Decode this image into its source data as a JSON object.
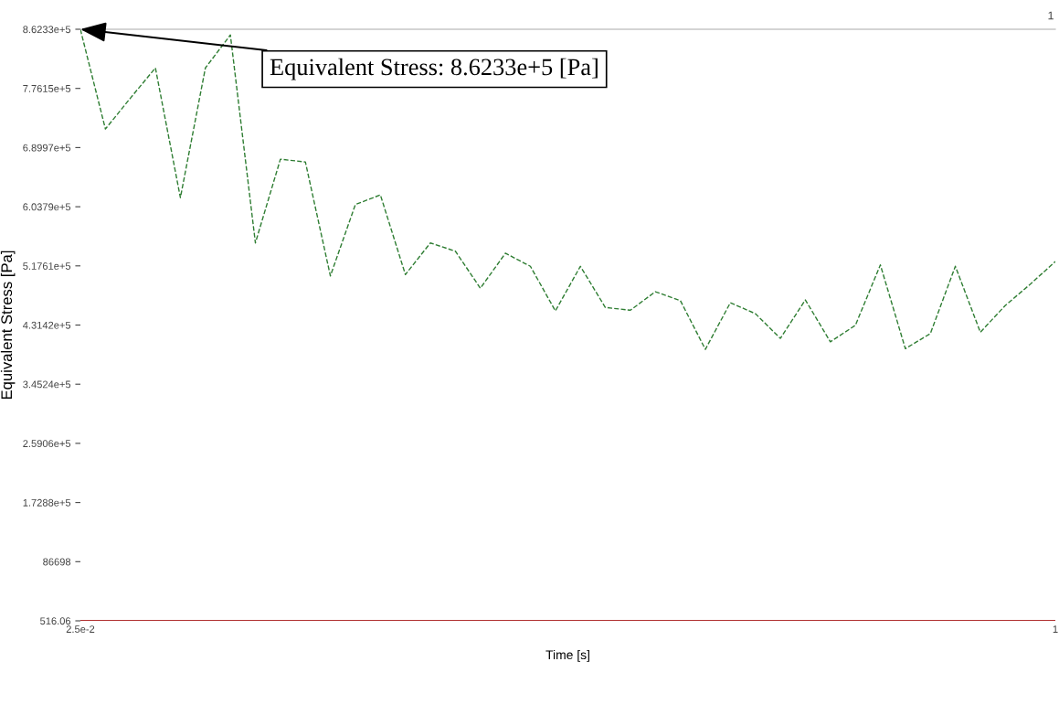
{
  "chart_data": {
    "type": "line",
    "xlabel": "Time [s]",
    "ylabel": "Equivalent Stress [Pa]",
    "x": [
      0.025,
      0.05,
      0.075,
      0.1,
      0.125,
      0.15,
      0.175,
      0.2,
      0.225,
      0.25,
      0.275,
      0.3,
      0.325,
      0.35,
      0.375,
      0.4,
      0.425,
      0.45,
      0.475,
      0.5,
      0.525,
      0.55,
      0.575,
      0.6,
      0.625,
      0.65,
      0.675,
      0.7,
      0.725,
      0.75,
      0.775,
      0.8,
      0.825,
      0.85,
      0.875,
      0.9,
      0.925,
      0.95,
      0.975,
      1
    ],
    "series": [
      {
        "color": "#2e7d32",
        "line_style": "dashed",
        "values": [
          862000,
          717000,
          762000,
          806000,
          617000,
          806000,
          854000,
          551000,
          673000,
          669000,
          503000,
          607000,
          621000,
          505000,
          551000,
          539000,
          485000,
          536000,
          517000,
          452000,
          517000,
          457000,
          453000,
          480000,
          467000,
          396000,
          464000,
          448000,
          412000,
          468000,
          407000,
          431000,
          519000,
          397000,
          419000,
          517000,
          421000,
          460000,
          491000,
          524000
        ]
      },
      {
        "color": "#b03030",
        "line_style": "solid",
        "values": [
          1000,
          1000,
          1000,
          1000,
          1000,
          1000,
          1000,
          1000,
          1000,
          1000,
          1000,
          1000,
          1000,
          1000,
          1000,
          1000,
          1000,
          1000,
          1000,
          1000,
          1000,
          1000,
          1000,
          1000,
          1000,
          1000,
          1000,
          1000,
          1000,
          1000,
          1000,
          1000,
          1000,
          1000,
          1000,
          1000,
          1000,
          1000,
          1000,
          1000
        ]
      }
    ],
    "xlim": [
      0.025,
      1
    ],
    "xticks": [
      {
        "value": 0.025,
        "label": "2.5e-2"
      },
      1
    ],
    "ylim": [
      516.06,
      862331
    ],
    "yticks": [
      516.06,
      {
        "value": 86698,
        "label": "86698"
      },
      {
        "value": 172879,
        "label": "1.7288e+5"
      },
      {
        "value": 259060,
        "label": "2.5906e+5"
      },
      {
        "value": 345242,
        "label": "3.4524e+5"
      },
      {
        "value": 431423,
        "label": "4.3142e+5"
      },
      {
        "value": 517605,
        "label": "5.1761e+5"
      },
      {
        "value": 603786,
        "label": "6.0379e+5"
      },
      {
        "value": 689968,
        "label": "6.8997e+5"
      },
      {
        "value": 776150,
        "label": "7.7615e+5"
      },
      {
        "value": 862331,
        "label": "8.6233e+5"
      }
    ],
    "grid": false,
    "legend": false,
    "annotations": [
      {
        "text": "Equivalent Stress: 8.6233e+5 [Pa]",
        "x": 0.025,
        "y": 862331
      },
      "1"
    ]
  }
}
